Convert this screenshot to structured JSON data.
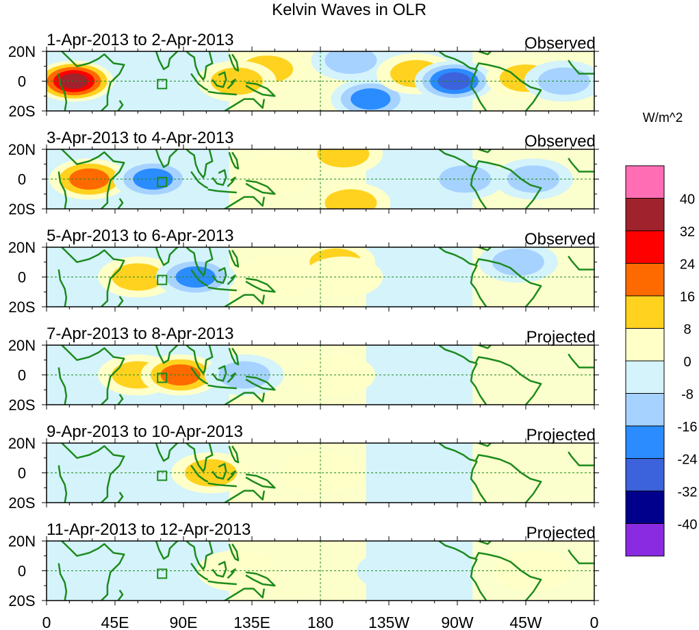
{
  "chart_data": {
    "type": "heatmap",
    "title": "Kelvin Waves in OLR",
    "x_ticks": [
      "0",
      "45E",
      "90E",
      "135E",
      "180",
      "135W",
      "90W",
      "45W",
      "0"
    ],
    "y_ticks": [
      "20N",
      "0",
      "20S"
    ],
    "x_range_deg_east": [
      0,
      360
    ],
    "y_range_deg": [
      -20,
      20
    ],
    "grid": "dashed equator and dateline",
    "colorbar": {
      "title": "W/m^2",
      "levels": [
        "40",
        "32",
        "24",
        "16",
        "8",
        "0",
        "-8",
        "-16",
        "-24",
        "-32",
        "-40"
      ],
      "colors": [
        "#ff6eb4",
        "#a0222c",
        "#ff0000",
        "#ff6a00",
        "#ffd21f",
        "#ffffc8",
        "#d4f3fb",
        "#a6d2ff",
        "#2b8cff",
        "#3c62dc",
        "#00008c",
        "#8a2be2"
      ]
    },
    "panels": [
      {
        "date_range": "1-Apr-2013 to 2-Apr-2013",
        "status": "Observed",
        "features": [
          {
            "lon": 18,
            "lat": 0,
            "value": 36
          },
          {
            "lon": 145,
            "lat": 8,
            "value": 10
          },
          {
            "lon": 125,
            "lat": 0,
            "value": 10
          },
          {
            "lon": 200,
            "lat": 14,
            "value": -12
          },
          {
            "lon": 213,
            "lat": -12,
            "value": -18
          },
          {
            "lon": 243,
            "lat": 5,
            "value": 12
          },
          {
            "lon": 268,
            "lat": 0,
            "value": -30
          },
          {
            "lon": 315,
            "lat": 2,
            "value": 10
          },
          {
            "lon": 340,
            "lat": 0,
            "value": -15
          }
        ]
      },
      {
        "date_range": "3-Apr-2013 to 4-Apr-2013",
        "status": "Observed",
        "features": [
          {
            "lon": 28,
            "lat": 0,
            "value": 20
          },
          {
            "lon": 70,
            "lat": 0,
            "value": -20
          },
          {
            "lon": 150,
            "lat": 3,
            "value": 8
          },
          {
            "lon": 195,
            "lat": 17,
            "value": 14
          },
          {
            "lon": 200,
            "lat": -16,
            "value": 14
          },
          {
            "lon": 275,
            "lat": 0,
            "value": -12
          },
          {
            "lon": 320,
            "lat": 0,
            "value": -10
          }
        ]
      },
      {
        "date_range": "5-Apr-2013 to 6-Apr-2013",
        "status": "Observed",
        "features": [
          {
            "lon": 60,
            "lat": 0,
            "value": 16
          },
          {
            "lon": 98,
            "lat": 0,
            "value": -20
          },
          {
            "lon": 150,
            "lat": 0,
            "value": 8
          },
          {
            "lon": 190,
            "lat": 10,
            "value": 10
          },
          {
            "lon": 195,
            "lat": 0,
            "value": 8
          },
          {
            "lon": 310,
            "lat": 10,
            "value": -10
          }
        ]
      },
      {
        "date_range": "7-Apr-2013 to 8-Apr-2013",
        "status": "Projected",
        "features": [
          {
            "lon": 60,
            "lat": 0,
            "value": 10
          },
          {
            "lon": 88,
            "lat": 0,
            "value": 18
          },
          {
            "lon": 130,
            "lat": 0,
            "value": -10
          },
          {
            "lon": 190,
            "lat": 0,
            "value": 3
          }
        ]
      },
      {
        "date_range": "9-Apr-2013 to 10-Apr-2013",
        "status": "Projected",
        "features": [
          {
            "lon": 45,
            "lat": 0,
            "value": -5
          },
          {
            "lon": 108,
            "lat": 0,
            "value": 10
          },
          {
            "lon": 180,
            "lat": 0,
            "value": 3
          },
          {
            "lon": 250,
            "lat": 5,
            "value": -5
          }
        ]
      },
      {
        "date_range": "11-Apr-2013 to 12-Apr-2013",
        "status": "Projected",
        "features": [
          {
            "lon": 40,
            "lat": 0,
            "value": -5
          },
          {
            "lon": 125,
            "lat": 0,
            "value": 5
          },
          {
            "lon": 230,
            "lat": 0,
            "value": -5
          },
          {
            "lon": 320,
            "lat": 0,
            "value": 4
          }
        ]
      }
    ]
  }
}
